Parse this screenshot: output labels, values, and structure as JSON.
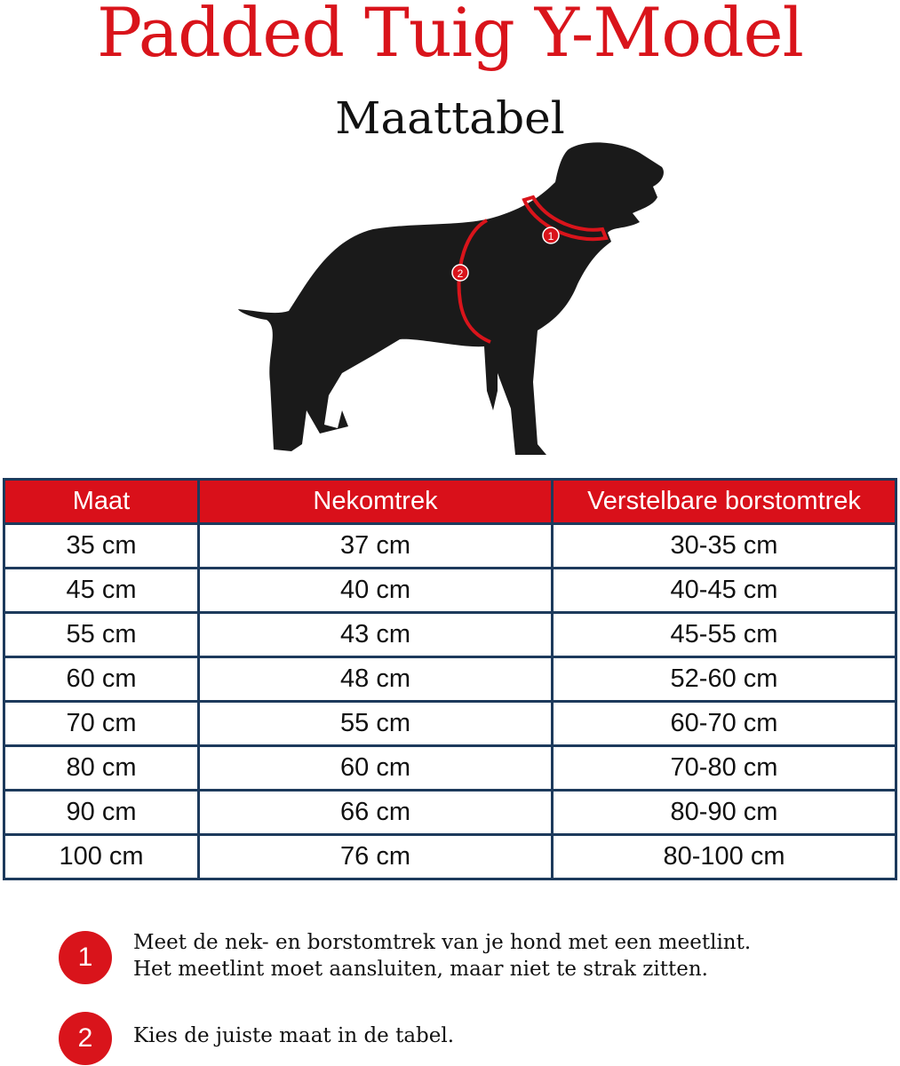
{
  "title": "Padded Tuig Y-Model",
  "subtitle": "Maattabel",
  "colors": {
    "accent": "#d9141b",
    "border": "#1d3a5c",
    "silhouette": "#1a1a1a"
  },
  "figure": {
    "markers": [
      "1",
      "2"
    ]
  },
  "table": {
    "headers": [
      "Maat",
      "Nekomtrek",
      "Verstelbare borstomtrek"
    ],
    "rows": [
      [
        "35 cm",
        "37 cm",
        "30-35 cm"
      ],
      [
        "45 cm",
        "40 cm",
        "40-45 cm"
      ],
      [
        "55 cm",
        "43 cm",
        "45-55 cm"
      ],
      [
        "60 cm",
        "48 cm",
        "52-60 cm"
      ],
      [
        "70 cm",
        "55 cm",
        "60-70 cm"
      ],
      [
        "80 cm",
        "60 cm",
        "70-80 cm"
      ],
      [
        "90 cm",
        "66 cm",
        "80-90 cm"
      ],
      [
        "100 cm",
        "76 cm",
        "80-100 cm"
      ]
    ]
  },
  "instructions": [
    {
      "number": "1",
      "lines": [
        "Meet de nek- en borstomtrek van je hond met een meetlint.",
        "Het meetlint moet aansluiten, maar niet te strak zitten."
      ]
    },
    {
      "number": "2",
      "lines": [
        "Kies de juiste maat in de tabel."
      ]
    }
  ]
}
